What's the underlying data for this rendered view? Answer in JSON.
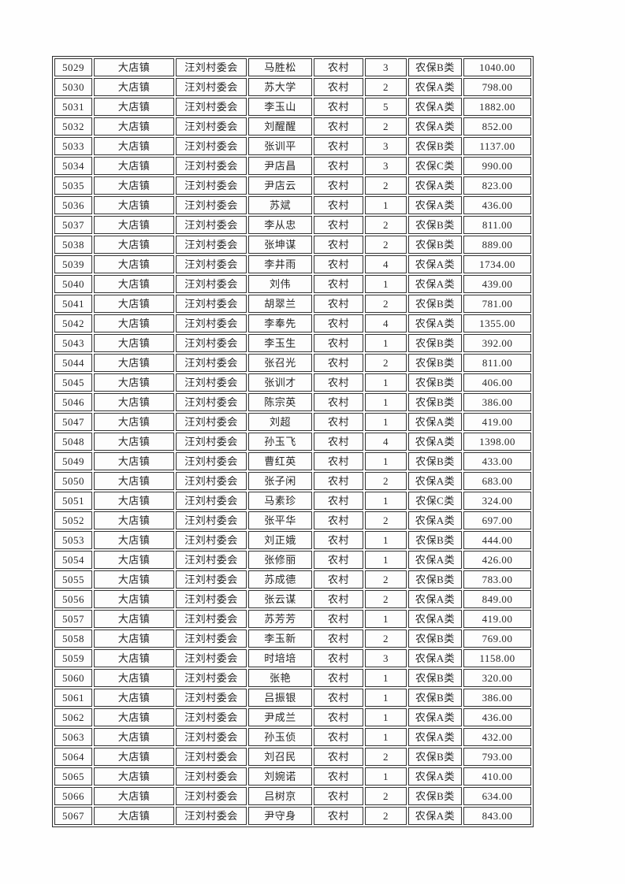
{
  "page": {
    "background_color": "#fefefe",
    "text_color": "#262626",
    "border_color": "#333333"
  },
  "table": {
    "column_keys": [
      "serial",
      "town",
      "village",
      "name",
      "category",
      "count",
      "insurance_type",
      "amount"
    ],
    "rows": [
      [
        "5029",
        "大店镇",
        "汪刘村委会",
        "马胜松",
        "农村",
        "3",
        "农保B类",
        "1040.00"
      ],
      [
        "5030",
        "大店镇",
        "汪刘村委会",
        "苏大学",
        "农村",
        "2",
        "农保A类",
        "798.00"
      ],
      [
        "5031",
        "大店镇",
        "汪刘村委会",
        "李玉山",
        "农村",
        "5",
        "农保A类",
        "1882.00"
      ],
      [
        "5032",
        "大店镇",
        "汪刘村委会",
        "刘醒醒",
        "农村",
        "2",
        "农保A类",
        "852.00"
      ],
      [
        "5033",
        "大店镇",
        "汪刘村委会",
        "张训平",
        "农村",
        "3",
        "农保B类",
        "1137.00"
      ],
      [
        "5034",
        "大店镇",
        "汪刘村委会",
        "尹店昌",
        "农村",
        "3",
        "农保C类",
        "990.00"
      ],
      [
        "5035",
        "大店镇",
        "汪刘村委会",
        "尹店云",
        "农村",
        "2",
        "农保A类",
        "823.00"
      ],
      [
        "5036",
        "大店镇",
        "汪刘村委会",
        "苏斌",
        "农村",
        "1",
        "农保A类",
        "436.00"
      ],
      [
        "5037",
        "大店镇",
        "汪刘村委会",
        "李从忠",
        "农村",
        "2",
        "农保B类",
        "811.00"
      ],
      [
        "5038",
        "大店镇",
        "汪刘村委会",
        "张坤谋",
        "农村",
        "2",
        "农保B类",
        "889.00"
      ],
      [
        "5039",
        "大店镇",
        "汪刘村委会",
        "李井雨",
        "农村",
        "4",
        "农保A类",
        "1734.00"
      ],
      [
        "5040",
        "大店镇",
        "汪刘村委会",
        "刘伟",
        "农村",
        "1",
        "农保A类",
        "439.00"
      ],
      [
        "5041",
        "大店镇",
        "汪刘村委会",
        "胡翠兰",
        "农村",
        "2",
        "农保B类",
        "781.00"
      ],
      [
        "5042",
        "大店镇",
        "汪刘村委会",
        "李奉先",
        "农村",
        "4",
        "农保A类",
        "1355.00"
      ],
      [
        "5043",
        "大店镇",
        "汪刘村委会",
        "李玉生",
        "农村",
        "1",
        "农保B类",
        "392.00"
      ],
      [
        "5044",
        "大店镇",
        "汪刘村委会",
        "张召光",
        "农村",
        "2",
        "农保B类",
        "811.00"
      ],
      [
        "5045",
        "大店镇",
        "汪刘村委会",
        "张训才",
        "农村",
        "1",
        "农保B类",
        "406.00"
      ],
      [
        "5046",
        "大店镇",
        "汪刘村委会",
        "陈宗英",
        "农村",
        "1",
        "农保B类",
        "386.00"
      ],
      [
        "5047",
        "大店镇",
        "汪刘村委会",
        "刘超",
        "农村",
        "1",
        "农保A类",
        "419.00"
      ],
      [
        "5048",
        "大店镇",
        "汪刘村委会",
        "孙玉飞",
        "农村",
        "4",
        "农保A类",
        "1398.00"
      ],
      [
        "5049",
        "大店镇",
        "汪刘村委会",
        "曹红英",
        "农村",
        "1",
        "农保B类",
        "433.00"
      ],
      [
        "5050",
        "大店镇",
        "汪刘村委会",
        "张子闲",
        "农村",
        "2",
        "农保A类",
        "683.00"
      ],
      [
        "5051",
        "大店镇",
        "汪刘村委会",
        "马素珍",
        "农村",
        "1",
        "农保C类",
        "324.00"
      ],
      [
        "5052",
        "大店镇",
        "汪刘村委会",
        "张平华",
        "农村",
        "2",
        "农保A类",
        "697.00"
      ],
      [
        "5053",
        "大店镇",
        "汪刘村委会",
        "刘正娥",
        "农村",
        "1",
        "农保B类",
        "444.00"
      ],
      [
        "5054",
        "大店镇",
        "汪刘村委会",
        "张修丽",
        "农村",
        "1",
        "农保A类",
        "426.00"
      ],
      [
        "5055",
        "大店镇",
        "汪刘村委会",
        "苏成德",
        "农村",
        "2",
        "农保B类",
        "783.00"
      ],
      [
        "5056",
        "大店镇",
        "汪刘村委会",
        "张云谋",
        "农村",
        "2",
        "农保A类",
        "849.00"
      ],
      [
        "5057",
        "大店镇",
        "汪刘村委会",
        "苏芳芳",
        "农村",
        "1",
        "农保A类",
        "419.00"
      ],
      [
        "5058",
        "大店镇",
        "汪刘村委会",
        "李玉新",
        "农村",
        "2",
        "农保B类",
        "769.00"
      ],
      [
        "5059",
        "大店镇",
        "汪刘村委会",
        "时培培",
        "农村",
        "3",
        "农保A类",
        "1158.00"
      ],
      [
        "5060",
        "大店镇",
        "汪刘村委会",
        "张艳",
        "农村",
        "1",
        "农保B类",
        "320.00"
      ],
      [
        "5061",
        "大店镇",
        "汪刘村委会",
        "吕振银",
        "农村",
        "1",
        "农保B类",
        "386.00"
      ],
      [
        "5062",
        "大店镇",
        "汪刘村委会",
        "尹成兰",
        "农村",
        "1",
        "农保A类",
        "436.00"
      ],
      [
        "5063",
        "大店镇",
        "汪刘村委会",
        "孙玉侦",
        "农村",
        "1",
        "农保A类",
        "432.00"
      ],
      [
        "5064",
        "大店镇",
        "汪刘村委会",
        "刘召民",
        "农村",
        "2",
        "农保B类",
        "793.00"
      ],
      [
        "5065",
        "大店镇",
        "汪刘村委会",
        "刘婉诺",
        "农村",
        "1",
        "农保A类",
        "410.00"
      ],
      [
        "5066",
        "大店镇",
        "汪刘村委会",
        "吕树京",
        "农村",
        "2",
        "农保B类",
        "634.00"
      ],
      [
        "5067",
        "大店镇",
        "汪刘村委会",
        "尹守身",
        "农村",
        "2",
        "农保A类",
        "843.00"
      ]
    ]
  }
}
